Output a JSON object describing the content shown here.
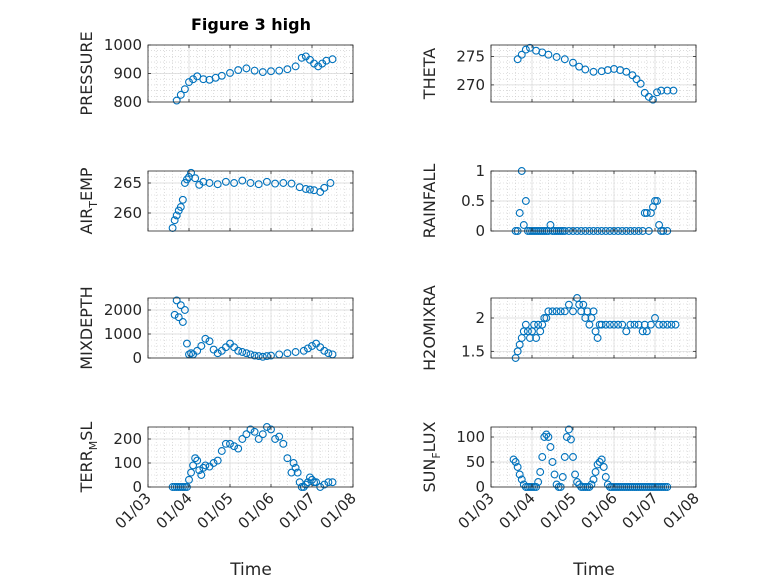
{
  "figure": {
    "title": "Figure 3 high"
  },
  "chart_data": [
    {
      "type": "scatter",
      "ylabel": "PRESSURE",
      "ylim": [
        800,
        1000
      ],
      "yticks": [
        800,
        900,
        1000
      ],
      "xlim": [
        0,
        5
      ],
      "xticks": [
        0,
        1,
        2,
        3,
        4,
        5
      ],
      "xticklabels": [
        "01/03",
        "01/04",
        "01/05",
        "01/06",
        "01/07",
        "01/08"
      ],
      "show_xticklabels": false,
      "grid": true,
      "color": "#0072BD",
      "x": [
        0.7,
        0.8,
        0.9,
        1.0,
        1.1,
        1.2,
        1.35,
        1.5,
        1.65,
        1.8,
        2.0,
        2.2,
        2.4,
        2.6,
        2.8,
        3.0,
        3.2,
        3.4,
        3.6,
        3.75,
        3.85,
        3.95,
        4.05,
        4.15,
        4.25,
        4.35,
        4.5
      ],
      "y": [
        805,
        825,
        845,
        870,
        880,
        890,
        880,
        878,
        885,
        892,
        902,
        912,
        918,
        910,
        905,
        908,
        910,
        915,
        925,
        955,
        960,
        948,
        935,
        925,
        935,
        945,
        950
      ]
    },
    {
      "type": "scatter",
      "ylabel": "THETA",
      "ylim": [
        267,
        277
      ],
      "yticks": [
        270,
        275
      ],
      "xlim": [
        0,
        5
      ],
      "xticks": [
        0,
        1,
        2,
        3,
        4,
        5
      ],
      "xticklabels": [
        "01/03",
        "01/04",
        "01/05",
        "01/06",
        "01/07",
        "01/08"
      ],
      "show_xticklabels": false,
      "grid": true,
      "color": "#0072BD",
      "x": [
        0.65,
        0.75,
        0.85,
        0.95,
        1.1,
        1.25,
        1.4,
        1.6,
        1.8,
        2.0,
        2.15,
        2.3,
        2.5,
        2.7,
        2.85,
        3.0,
        3.15,
        3.3,
        3.45,
        3.55,
        3.65,
        3.75,
        3.85,
        3.95,
        4.05,
        4.15,
        4.3,
        4.45
      ],
      "y": [
        274.5,
        275.3,
        276.2,
        276.5,
        276.0,
        275.7,
        275.3,
        274.9,
        274.5,
        273.9,
        273.2,
        272.7,
        272.3,
        272.4,
        272.6,
        272.8,
        272.6,
        272.3,
        271.7,
        271.0,
        270.2,
        268.6,
        267.9,
        267.4,
        268.7,
        269.0,
        269.0,
        269.0
      ]
    },
    {
      "type": "scatter",
      "ylabel": "AIR_TEMP",
      "ylim": [
        257,
        267
      ],
      "yticks": [
        260,
        265
      ],
      "xlim": [
        0,
        5
      ],
      "xticks": [
        0,
        1,
        2,
        3,
        4,
        5
      ],
      "xticklabels": [
        "01/03",
        "01/04",
        "01/05",
        "01/06",
        "01/07",
        "01/08"
      ],
      "show_xticklabels": false,
      "grid": true,
      "color": "#0072BD",
      "x": [
        0.6,
        0.65,
        0.7,
        0.75,
        0.8,
        0.85,
        0.9,
        0.95,
        1.0,
        1.05,
        1.15,
        1.25,
        1.35,
        1.5,
        1.7,
        1.9,
        2.1,
        2.3,
        2.5,
        2.7,
        2.9,
        3.1,
        3.3,
        3.5,
        3.7,
        3.85,
        3.95,
        4.05,
        4.2,
        4.3,
        4.45
      ],
      "y": [
        257.5,
        258.8,
        259.6,
        260.4,
        261.0,
        262.2,
        265.0,
        265.6,
        266.0,
        266.7,
        265.8,
        264.7,
        265.2,
        265.0,
        264.8,
        265.2,
        265.0,
        265.4,
        265.0,
        264.8,
        265.2,
        264.9,
        265.0,
        264.9,
        264.3,
        264.0,
        263.9,
        263.8,
        263.5,
        264.2,
        265.0
      ]
    },
    {
      "type": "scatter",
      "ylabel": "RAINFALL",
      "ylim": [
        0,
        1
      ],
      "yticks": [
        0,
        0.5,
        1
      ],
      "xlim": [
        0,
        5
      ],
      "xticks": [
        0,
        1,
        2,
        3,
        4,
        5
      ],
      "xticklabels": [
        "01/03",
        "01/04",
        "01/05",
        "01/06",
        "01/07",
        "01/08"
      ],
      "show_xticklabels": false,
      "grid": true,
      "color": "#0072BD",
      "x": [
        0.6,
        0.65,
        0.7,
        0.75,
        0.8,
        0.85,
        0.9,
        0.95,
        1.0,
        1.05,
        1.1,
        1.15,
        1.2,
        1.25,
        1.3,
        1.35,
        1.4,
        1.45,
        1.5,
        1.55,
        1.6,
        1.65,
        1.7,
        1.75,
        1.8,
        1.9,
        2.0,
        2.1,
        2.2,
        2.3,
        2.4,
        2.5,
        2.6,
        2.7,
        2.8,
        2.9,
        3.0,
        3.1,
        3.2,
        3.3,
        3.4,
        3.5,
        3.6,
        3.7,
        3.75,
        3.8,
        3.85,
        3.9,
        3.95,
        4.0,
        4.05,
        4.1,
        4.15,
        4.2,
        4.3
      ],
      "y": [
        0,
        0,
        0.3,
        1.0,
        0.1,
        0.5,
        0,
        0,
        0,
        0,
        0,
        0,
        0,
        0,
        0,
        0,
        0,
        0.1,
        0,
        0,
        0,
        0,
        0,
        0,
        0,
        0,
        0,
        0,
        0,
        0,
        0,
        0,
        0,
        0,
        0,
        0,
        0,
        0,
        0,
        0,
        0,
        0,
        0,
        0,
        0.3,
        0.3,
        0,
        0.3,
        0.4,
        0.5,
        0.5,
        0.1,
        0,
        0,
        0
      ]
    },
    {
      "type": "scatter",
      "ylabel": "MIXDEPTH",
      "ylim": [
        0,
        2500
      ],
      "yticks": [
        0,
        1000,
        2000
      ],
      "xlim": [
        0,
        5
      ],
      "xticks": [
        0,
        1,
        2,
        3,
        4,
        5
      ],
      "xticklabels": [
        "01/03",
        "01/04",
        "01/05",
        "01/06",
        "01/07",
        "01/08"
      ],
      "show_xticklabels": false,
      "grid": true,
      "color": "#0072BD",
      "x": [
        0.65,
        0.7,
        0.75,
        0.8,
        0.85,
        0.9,
        0.95,
        1.0,
        1.05,
        1.1,
        1.2,
        1.3,
        1.4,
        1.5,
        1.6,
        1.7,
        1.8,
        1.9,
        2.0,
        2.1,
        2.2,
        2.3,
        2.4,
        2.5,
        2.6,
        2.7,
        2.8,
        2.9,
        3.0,
        3.2,
        3.4,
        3.6,
        3.8,
        3.9,
        4.0,
        4.1,
        4.2,
        4.3,
        4.4,
        4.5
      ],
      "y": [
        1800,
        2400,
        1700,
        2200,
        1500,
        2000,
        600,
        150,
        200,
        150,
        300,
        500,
        800,
        700,
        350,
        200,
        300,
        450,
        600,
        450,
        300,
        250,
        200,
        150,
        100,
        80,
        50,
        80,
        100,
        150,
        200,
        250,
        300,
        400,
        500,
        600,
        450,
        300,
        200,
        150
      ]
    },
    {
      "type": "scatter",
      "ylabel": "H2OMIXRA",
      "ylim": [
        1.4,
        2.3
      ],
      "yticks": [
        1.5,
        2
      ],
      "xlim": [
        0,
        5
      ],
      "xticks": [
        0,
        1,
        2,
        3,
        4,
        5
      ],
      "xticklabels": [
        "01/03",
        "01/04",
        "01/05",
        "01/06",
        "01/07",
        "01/08"
      ],
      "show_xticklabels": false,
      "grid": true,
      "color": "#0072BD",
      "x": [
        0.6,
        0.65,
        0.7,
        0.75,
        0.8,
        0.85,
        0.9,
        0.95,
        1.0,
        1.05,
        1.1,
        1.15,
        1.2,
        1.25,
        1.3,
        1.35,
        1.4,
        1.5,
        1.6,
        1.7,
        1.8,
        1.9,
        2.0,
        2.1,
        2.15,
        2.2,
        2.25,
        2.3,
        2.35,
        2.4,
        2.45,
        2.5,
        2.55,
        2.6,
        2.65,
        2.7,
        2.8,
        2.9,
        3.0,
        3.1,
        3.2,
        3.3,
        3.4,
        3.5,
        3.6,
        3.7,
        3.75,
        3.8,
        3.9,
        4.0,
        4.1,
        4.2,
        4.3,
        4.4,
        4.5
      ],
      "y": [
        1.4,
        1.5,
        1.6,
        1.7,
        1.8,
        1.9,
        1.8,
        1.7,
        1.8,
        1.9,
        1.7,
        1.9,
        1.8,
        1.9,
        2.0,
        2.0,
        2.1,
        2.1,
        2.1,
        2.1,
        2.1,
        2.2,
        2.1,
        2.3,
        2.2,
        2.1,
        2.2,
        2.0,
        2.1,
        1.9,
        2.0,
        2.1,
        1.8,
        1.7,
        1.9,
        1.9,
        1.9,
        1.9,
        1.9,
        1.9,
        1.9,
        1.8,
        1.9,
        1.9,
        1.9,
        1.8,
        1.9,
        1.8,
        1.9,
        2.0,
        1.9,
        1.9,
        1.9,
        1.9,
        1.9
      ]
    },
    {
      "type": "scatter",
      "ylabel": "TERR_MSL",
      "ylim": [
        0,
        250
      ],
      "yticks": [
        0,
        100,
        200
      ],
      "xlim": [
        0,
        5
      ],
      "xticks": [
        0,
        1,
        2,
        3,
        4,
        5
      ],
      "xticklabels": [
        "01/03",
        "01/04",
        "01/05",
        "01/06",
        "01/07",
        "01/08"
      ],
      "show_xticklabels": true,
      "grid": true,
      "color": "#0072BD",
      "x": [
        0.6,
        0.65,
        0.7,
        0.75,
        0.8,
        0.85,
        0.9,
        0.95,
        1.0,
        1.05,
        1.1,
        1.15,
        1.2,
        1.25,
        1.3,
        1.35,
        1.4,
        1.5,
        1.6,
        1.7,
        1.8,
        1.9,
        2.0,
        2.1,
        2.2,
        2.3,
        2.4,
        2.5,
        2.6,
        2.7,
        2.8,
        2.9,
        3.0,
        3.1,
        3.2,
        3.3,
        3.4,
        3.5,
        3.55,
        3.6,
        3.65,
        3.7,
        3.75,
        3.8,
        3.85,
        3.9,
        3.95,
        4.0,
        4.05,
        4.1,
        4.2,
        4.3,
        4.4,
        4.5
      ],
      "y": [
        0,
        0,
        0,
        0,
        0,
        0,
        0,
        0,
        30,
        60,
        90,
        120,
        110,
        70,
        50,
        80,
        90,
        85,
        100,
        110,
        150,
        180,
        180,
        170,
        160,
        200,
        220,
        240,
        230,
        200,
        220,
        250,
        240,
        200,
        210,
        180,
        120,
        60,
        100,
        80,
        60,
        20,
        0,
        0,
        10,
        20,
        40,
        30,
        20,
        20,
        0,
        10,
        20,
        20
      ]
    },
    {
      "type": "scatter",
      "ylabel": "SUN_FLUX",
      "ylim": [
        0,
        120
      ],
      "yticks": [
        0,
        50,
        100
      ],
      "xlim": [
        0,
        5
      ],
      "xticks": [
        0,
        1,
        2,
        3,
        4,
        5
      ],
      "xticklabels": [
        "01/03",
        "01/04",
        "01/05",
        "01/06",
        "01/07",
        "01/08"
      ],
      "show_xticklabels": true,
      "grid": true,
      "color": "#0072BD",
      "x": [
        0.55,
        0.6,
        0.65,
        0.7,
        0.75,
        0.8,
        0.85,
        0.9,
        0.95,
        1.0,
        1.05,
        1.1,
        1.15,
        1.2,
        1.25,
        1.3,
        1.35,
        1.4,
        1.45,
        1.5,
        1.55,
        1.6,
        1.65,
        1.7,
        1.75,
        1.8,
        1.85,
        1.9,
        1.95,
        2.0,
        2.05,
        2.1,
        2.15,
        2.2,
        2.25,
        2.3,
        2.35,
        2.4,
        2.45,
        2.5,
        2.55,
        2.6,
        2.65,
        2.7,
        2.75,
        2.8,
        2.85,
        2.9,
        2.95,
        3.0,
        3.05,
        3.1,
        3.15,
        3.2,
        3.25,
        3.3,
        3.35,
        3.4,
        3.45,
        3.5,
        3.55,
        3.6,
        3.65,
        3.7,
        3.75,
        3.8,
        3.85,
        3.9,
        3.95,
        4.0,
        4.05,
        4.1,
        4.15,
        4.2,
        4.25,
        4.3
      ],
      "y": [
        55,
        50,
        40,
        25,
        15,
        5,
        0,
        0,
        0,
        0,
        0,
        0,
        10,
        30,
        60,
        100,
        105,
        100,
        80,
        50,
        25,
        5,
        0,
        0,
        20,
        60,
        100,
        115,
        95,
        60,
        25,
        10,
        5,
        0,
        0,
        0,
        0,
        0,
        5,
        15,
        30,
        45,
        50,
        55,
        40,
        20,
        5,
        0,
        0,
        0,
        0,
        0,
        0,
        0,
        0,
        0,
        0,
        0,
        0,
        0,
        0,
        0,
        0,
        0,
        0,
        0,
        0,
        0,
        0,
        0,
        0,
        0,
        0,
        0,
        0,
        0
      ]
    }
  ],
  "bottom_axis_labels": [
    "Time",
    "Time"
  ]
}
